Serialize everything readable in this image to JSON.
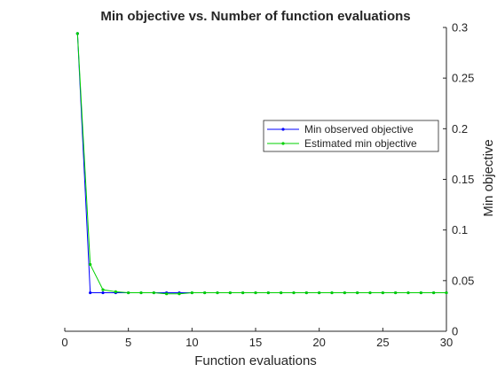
{
  "chart_data": {
    "type": "line",
    "title": "Min objective vs. Number of function evaluations",
    "xlabel": "Function evaluations",
    "ylabel": "Min objective",
    "xlim": [
      0,
      30
    ],
    "ylim": [
      0,
      0.3
    ],
    "y_axis_side": "right",
    "grid": false,
    "legend_position": "upper-right",
    "xticks": [
      "0",
      "5",
      "10",
      "15",
      "20",
      "25",
      "30"
    ],
    "yticks": [
      "0",
      "0.05",
      "0.1",
      "0.15",
      "0.2",
      "0.25",
      "0.3"
    ],
    "series": [
      {
        "name": "Min observed objective",
        "color": "#0000ff",
        "marker": "dot",
        "x": [
          1,
          2,
          3,
          4,
          5,
          6,
          7,
          8,
          9,
          10,
          11,
          12,
          13,
          14,
          15,
          16,
          17,
          18,
          19,
          20,
          21,
          22,
          23,
          24,
          25,
          26,
          27,
          28,
          29,
          30
        ],
        "y": [
          0.294,
          0.038,
          0.038,
          0.038,
          0.038,
          0.038,
          0.038,
          0.038,
          0.038,
          0.038,
          0.038,
          0.038,
          0.038,
          0.038,
          0.038,
          0.038,
          0.038,
          0.038,
          0.038,
          0.038,
          0.038,
          0.038,
          0.038,
          0.038,
          0.038,
          0.038,
          0.038,
          0.038,
          0.038,
          0.038
        ]
      },
      {
        "name": "Estimated min objective",
        "color": "#00d000",
        "marker": "dot",
        "x": [
          1,
          2,
          3,
          4,
          5,
          6,
          7,
          8,
          9,
          10,
          11,
          12,
          13,
          14,
          15,
          16,
          17,
          18,
          19,
          20,
          21,
          22,
          23,
          24,
          25,
          26,
          27,
          28,
          29,
          30
        ],
        "y": [
          0.294,
          0.066,
          0.041,
          0.039,
          0.038,
          0.038,
          0.038,
          0.037,
          0.037,
          0.038,
          0.038,
          0.038,
          0.038,
          0.038,
          0.038,
          0.038,
          0.038,
          0.038,
          0.038,
          0.038,
          0.038,
          0.038,
          0.038,
          0.038,
          0.038,
          0.038,
          0.038,
          0.038,
          0.038,
          0.038
        ]
      }
    ]
  }
}
